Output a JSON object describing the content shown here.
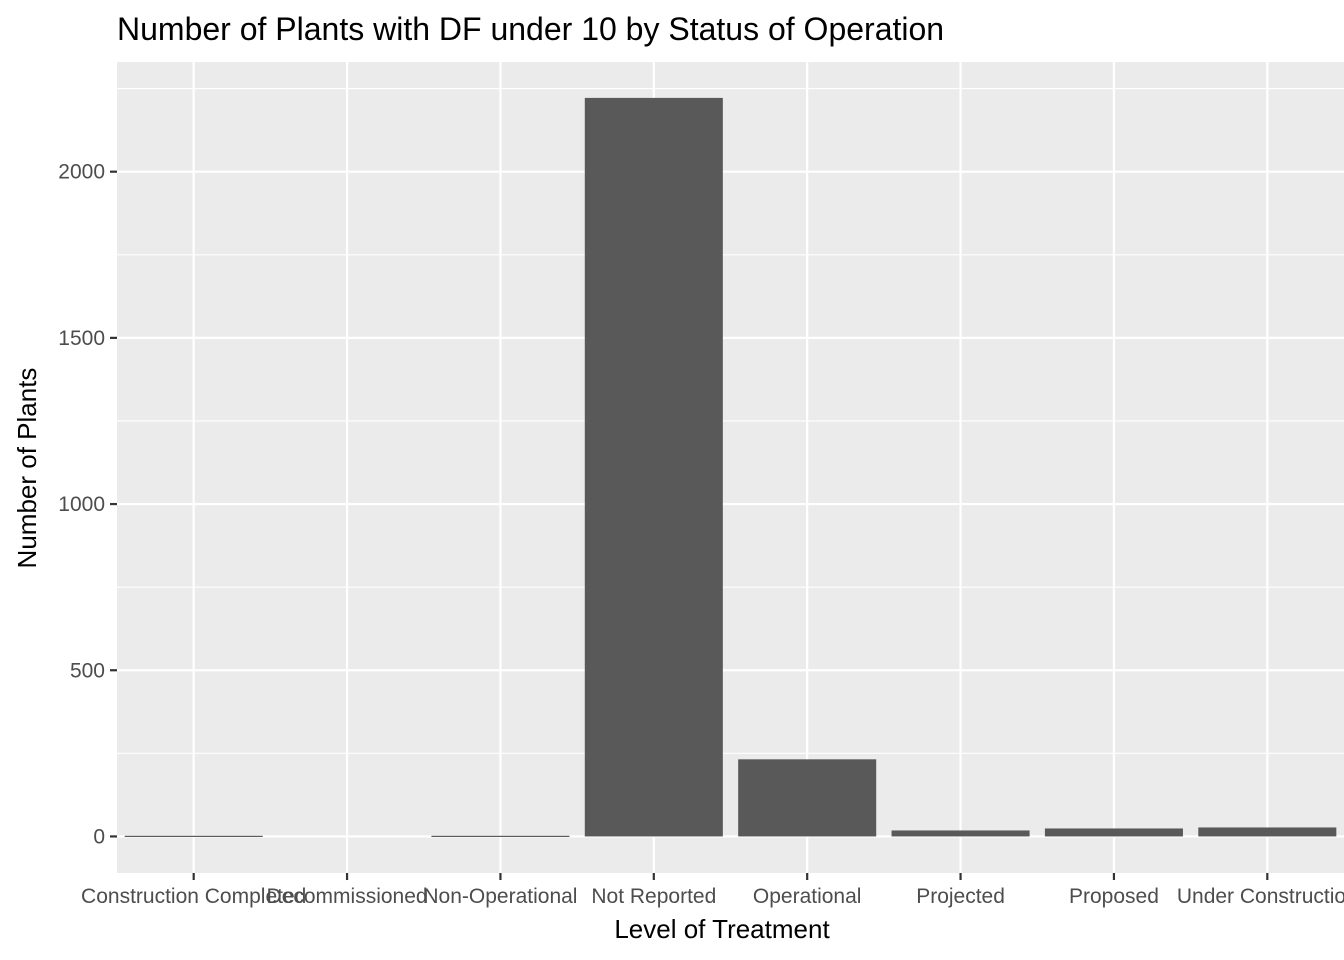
{
  "chart_data": {
    "type": "bar",
    "title": "Number of Plants with DF under 10 by Status of Operation",
    "xlabel": "Level of Treatment",
    "ylabel": "Number of Plants",
    "categories": [
      "Construction Completed",
      "Decommissioned",
      "Non-Operational",
      "Not Reported",
      "Operational",
      "Projected",
      "Proposed",
      "Under Construction"
    ],
    "values": [
      2,
      0,
      2,
      2222,
      232,
      18,
      24,
      27
    ],
    "ylim": [
      -110,
      2330
    ],
    "yticks": [
      0,
      500,
      1000,
      1500,
      2000
    ],
    "ytick_labels": [
      "0",
      "500",
      "1000",
      "1500",
      "2000"
    ],
    "grid": true,
    "legend": "none",
    "colors": {
      "panel": "#ebebeb",
      "grid": "#ffffff",
      "bar": "#595959",
      "tick": "#333333"
    }
  }
}
